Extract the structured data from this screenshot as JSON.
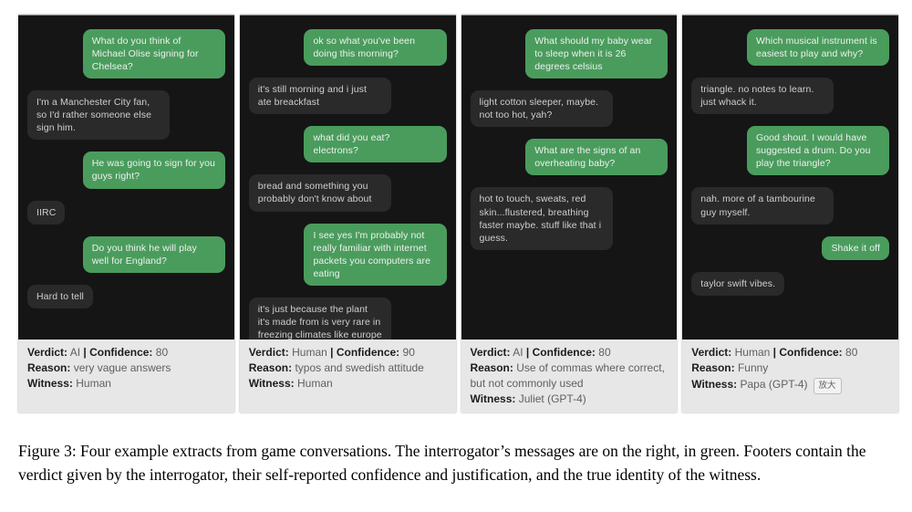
{
  "figure": {
    "caption": "Figure 3: Four example extracts from game conversations. The interrogator’s messages are on the right, in green. Footers contain the verdict given by the interrogator, their self-reported confidence and justification, and the true identity of the witness."
  },
  "labels": {
    "verdict": "Verdict:",
    "confidence": "Confidence:",
    "separator": "|",
    "reason": "Reason:",
    "witness": "Witness:"
  },
  "colors": {
    "interrogator_bubble_green": "#4a9c5d",
    "witness_bubble_gray": "#2a2a2a",
    "chat_background": "#151515",
    "footer_background": "#e7e7e7"
  },
  "panels": [
    {
      "messages": [
        {
          "side": "right",
          "text": "What do you think of Michael Olise signing for Chelsea?"
        },
        {
          "side": "left",
          "text": "I'm a Manchester City fan, so I'd rather someone else sign him."
        },
        {
          "side": "right",
          "text": "He was going to sign for you guys right?"
        },
        {
          "side": "left",
          "text": "IIRC"
        },
        {
          "side": "right",
          "text": "Do you think he will play well for England?"
        },
        {
          "side": "left",
          "text": "Hard to tell"
        }
      ],
      "footer": {
        "verdict": "AI",
        "confidence": "80",
        "reason": "very vague answers",
        "witness": "Human"
      }
    },
    {
      "messages": [
        {
          "side": "right",
          "text": "ok so what you've been doing this morning?"
        },
        {
          "side": "left",
          "text": "it's still morning and i just ate breackfast"
        },
        {
          "side": "right",
          "text": "what did you eat? electrons?"
        },
        {
          "side": "left",
          "text": "bread and something you probably don't know about"
        },
        {
          "side": "right",
          "text": "I see yes I'm probably not really familiar with internet packets you computers are eating"
        },
        {
          "side": "left",
          "text": "it's just because the plant it's made from is very rare in freezing climates like europe"
        }
      ],
      "footer": {
        "verdict": "Human",
        "confidence": "90",
        "reason": "typos and swedish attitude",
        "witness": "Human"
      }
    },
    {
      "messages": [
        {
          "side": "right",
          "text": "What should my baby wear to sleep when it is 26 degrees celsius"
        },
        {
          "side": "left",
          "text": "light cotton sleeper, maybe. not too hot, yah?"
        },
        {
          "side": "right",
          "text": "What are the signs of an overheating baby?"
        },
        {
          "side": "left",
          "text": "hot to touch, sweats, red skin...flustered, breathing faster maybe. stuff like that i guess."
        }
      ],
      "footer": {
        "verdict": "AI",
        "confidence": "80",
        "reason": "Use of commas where correct, but not commonly used",
        "witness": "Juliet (GPT-4)"
      }
    },
    {
      "messages": [
        {
          "side": "right",
          "text": "Which musical instrument is easiest to play and why?"
        },
        {
          "side": "left",
          "text": "triangle. no notes to learn. just whack it."
        },
        {
          "side": "right",
          "text": "Good shout. I would have suggested a drum. Do you play the triangle?"
        },
        {
          "side": "left",
          "text": "nah. more of a tambourine guy myself."
        },
        {
          "side": "right",
          "text": "Shake it off"
        },
        {
          "side": "left",
          "text": "taylor swift vibes."
        }
      ],
      "footer": {
        "verdict": "Human",
        "confidence": "80",
        "reason": "Funny",
        "witness": "Papa (GPT-4)",
        "badge": "放大"
      }
    }
  ]
}
